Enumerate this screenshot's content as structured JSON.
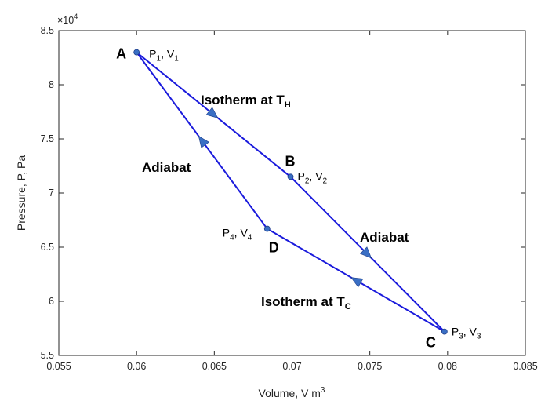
{
  "chart_data": {
    "type": "line",
    "title": "",
    "xlabel": "Volume, V m",
    "xlabel_sup": "3",
    "ylabel": "Pressure, P, Pa",
    "xlim": [
      0.055,
      0.085
    ],
    "ylim": [
      5.5,
      8.5
    ],
    "y_multiplier": "×10",
    "y_multiplier_exp": "4",
    "x_ticks": [
      0.055,
      0.06,
      0.065,
      0.07,
      0.075,
      0.08,
      0.085
    ],
    "x_tick_labels": [
      "0.055",
      "0.06",
      "0.065",
      "0.07",
      "0.075",
      "0.08",
      "0.085"
    ],
    "y_ticks": [
      5.5,
      6,
      6.5,
      7,
      7.5,
      8,
      8.5
    ],
    "y_tick_labels": [
      "5.5",
      "6",
      "6.5",
      "7",
      "7.5",
      "8",
      "8.5"
    ],
    "grid": false,
    "line_color": "#1a1adc",
    "marker_color": "#3a6fc4",
    "points": [
      {
        "id": "A",
        "x": 0.06,
        "y": 8.3,
        "letter": "A",
        "p": "P",
        "p_sub": "1",
        "v": "V",
        "v_sub": "1"
      },
      {
        "id": "B",
        "x": 0.0699,
        "y": 7.15,
        "letter": "B",
        "p": "P",
        "p_sub": "2",
        "v": "V",
        "v_sub": "2"
      },
      {
        "id": "C",
        "x": 0.0798,
        "y": 5.72,
        "letter": "C",
        "p": "P",
        "p_sub": "3",
        "v": "V",
        "v_sub": "3"
      },
      {
        "id": "D",
        "x": 0.0684,
        "y": 6.67,
        "letter": "D",
        "p": "P",
        "p_sub": "4",
        "v": "V",
        "v_sub": "4"
      }
    ],
    "segments": [
      {
        "from": "A",
        "to": "B",
        "label": "Isotherm at T",
        "label_sub": "H"
      },
      {
        "from": "B",
        "to": "C",
        "label": "Adiabat",
        "label_sub": ""
      },
      {
        "from": "C",
        "to": "D",
        "label": "Isotherm at T",
        "label_sub": "C"
      },
      {
        "from": "D",
        "to": "A",
        "label": "Adiabat",
        "label_sub": ""
      }
    ]
  }
}
